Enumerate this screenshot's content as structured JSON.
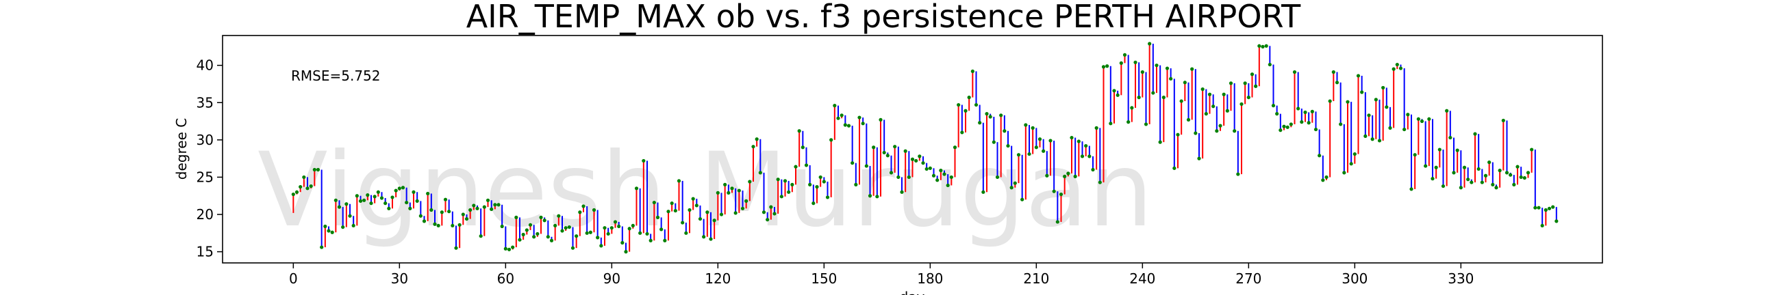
{
  "chart_data": {
    "type": "line",
    "title": "AIR_TEMP_MAX  ob vs. f3  persistence  PERTH AIRPORT",
    "xlabel": "day",
    "ylabel": "degree C",
    "xlim": [
      -20,
      370
    ],
    "ylim": [
      13.5,
      44
    ],
    "xticks": [
      0,
      30,
      60,
      90,
      120,
      150,
      180,
      210,
      240,
      270,
      300,
      330
    ],
    "yticks": [
      15,
      20,
      25,
      30,
      35,
      40
    ],
    "annotation": "RMSE=5.752",
    "watermark": "Vignesh Murugan",
    "grid": false,
    "colors": {
      "forecast_higher": "#ff0000",
      "forecast_lower": "#0000ff",
      "observed_marker": "#008000",
      "axis": "#000000"
    },
    "series": [
      {
        "role": "observed",
        "values": [
          22.7,
          23.0,
          23.7,
          25.0,
          23.5,
          23.8,
          26.0,
          26.0,
          15.6,
          18.4,
          17.8,
          17.6,
          21.9,
          21.0,
          18.3,
          21.4,
          19.8,
          18.5,
          22.5,
          21.8,
          21.9,
          22.6,
          21.5,
          22.4,
          23.0,
          22.2,
          21.5,
          20.8,
          22.3,
          23.2,
          23.5,
          23.6,
          21.6,
          20.8,
          23.0,
          21.8,
          19.8,
          19.1,
          22.8,
          20.6,
          18.7,
          18.5,
          20.3,
          22.0,
          20.4,
          18.5,
          15.5,
          18.6,
          20.0,
          19.4,
          20.6,
          21.2,
          20.8,
          17.1,
          21.0,
          21.9,
          20.7,
          21.3,
          21.3,
          18.4,
          15.4,
          15.3,
          15.6,
          19.6,
          16.6,
          17.3,
          17.9,
          18.6,
          17.0,
          17.4,
          19.6,
          19.2,
          17.0,
          16.5,
          18.5,
          19.8,
          17.8,
          18.2,
          18.3,
          15.5,
          17.1,
          20.3,
          21.1,
          17.5,
          17.6,
          20.6,
          16.9,
          15.8,
          18.2,
          17.4,
          18.2,
          19.0,
          18.4,
          16.2,
          15.0,
          18.1,
          18.5,
          23.5,
          17.5,
          27.2,
          17.4,
          16.5,
          21.6,
          19.6,
          18.0,
          16.5,
          20.4,
          21.5,
          20.5,
          24.5,
          18.9,
          17.5,
          20.6,
          22.1,
          21.2,
          19.4,
          17.0,
          20.3,
          16.7,
          19.2,
          22.9,
          20.0,
          24.0,
          22.9,
          23.5,
          20.2,
          23.2,
          20.8,
          21.8,
          24.4,
          29.1,
          30.1,
          25.6,
          20.3,
          19.3,
          21.0,
          20.1,
          24.7,
          22.4,
          24.5,
          23.0,
          24.0,
          26.4,
          31.2,
          29.0,
          26.6,
          24.0,
          21.5,
          23.7,
          25.0,
          24.4,
          22.3,
          30.0,
          34.6,
          32.9,
          33.3,
          32.0,
          31.9,
          26.9,
          24.0,
          33.0,
          32.2,
          26.5,
          22.5,
          29.0,
          22.4,
          32.7,
          28.3,
          27.9,
          25.6,
          29.1,
          25.0,
          23.0,
          28.5,
          25.0,
          27.4,
          27.2,
          27.8,
          26.9,
          26.1,
          26.2,
          25.2,
          24.6,
          25.9,
          25.4,
          23.9,
          25.0,
          29.0,
          34.7,
          31.0,
          33.9,
          35.7,
          39.2,
          34.7,
          32.3,
          23.0,
          33.5,
          33.1,
          29.7,
          25.0,
          33.3,
          31.2,
          29.2,
          23.6,
          24.2,
          28.0,
          22.0,
          32.0,
          28.1,
          31.6,
          29.0,
          30.1,
          28.5,
          25.2,
          29.9,
          23.1,
          19.0,
          22.7,
          25.1,
          25.5,
          30.3,
          25.1,
          29.8,
          27.8,
          29.2,
          27.8,
          26.0,
          31.6,
          24.3,
          39.8,
          39.9,
          32.2,
          36.6,
          36.0,
          40.3,
          41.4,
          32.4,
          34.3,
          40.4,
          35.7,
          39.1,
          32.1,
          42.9,
          36.3,
          40.0,
          29.7,
          35.7,
          39.6,
          38.2,
          26.2,
          30.7,
          35.2,
          37.7,
          32.7,
          39.5,
          30.9,
          27.5,
          36.8,
          33.5,
          36.1,
          34.5,
          31.2,
          31.9,
          36.1,
          33.9,
          37.6,
          31.2,
          25.4,
          34.8,
          37.6,
          35.7,
          38.8,
          37.2,
          42.6,
          42.5,
          42.6,
          40.1,
          34.6,
          33.5,
          31.3,
          31.8,
          31.7,
          32.1,
          39.1,
          34.2,
          32.4,
          33.7,
          32.3,
          33.8,
          31.4,
          27.9,
          24.6,
          25.0,
          35.2,
          39.1,
          37.7,
          32.1,
          25.6,
          35.1,
          26.8,
          28.1,
          38.6,
          36.4,
          30.5,
          33.3,
          30.1,
          35.4,
          29.9,
          37.0,
          34.4,
          31.6,
          39.5,
          40.1,
          39.6,
          31.4,
          33.4,
          23.4,
          28.0,
          32.8,
          32.5,
          26.5,
          32.8,
          24.8,
          26.3,
          28.7,
          23.8,
          33.9,
          30.3,
          25.6,
          28.6,
          23.6,
          26.3,
          24.7,
          24.3,
          30.8,
          26.1,
          24.3,
          25.2,
          27.0,
          24.0,
          23.6,
          25.9,
          32.6,
          25.6,
          25.3,
          24.0,
          26.4,
          25.0,
          24.9,
          25.6,
          28.7,
          20.9,
          20.9,
          18.5,
          20.6,
          20.8,
          21.0,
          19.1
        ]
      },
      {
        "role": "forecast_f3_persistence",
        "values": [
          20.2,
          22.7,
          23.0,
          23.7,
          25.0,
          23.5,
          23.8,
          26.0,
          26.0,
          15.6,
          18.4,
          17.8,
          17.6,
          21.9,
          21.0,
          18.3,
          21.4,
          19.8,
          18.5,
          22.5,
          21.8,
          21.9,
          22.6,
          21.5,
          22.4,
          23.0,
          22.2,
          21.5,
          20.8,
          22.3,
          23.2,
          23.5,
          23.6,
          21.6,
          20.8,
          23.0,
          21.8,
          19.8,
          19.1,
          22.8,
          20.6,
          18.7,
          18.5,
          20.3,
          22.0,
          20.4,
          18.5,
          15.5,
          18.6,
          20.0,
          19.4,
          20.6,
          21.2,
          20.8,
          17.1,
          21.0,
          21.9,
          20.7,
          21.3,
          21.3,
          18.4,
          15.4,
          15.3,
          15.6,
          19.6,
          16.6,
          17.3,
          17.9,
          18.6,
          17.0,
          17.4,
          19.6,
          19.2,
          17.0,
          16.5,
          18.5,
          19.8,
          17.8,
          18.2,
          18.3,
          15.5,
          17.1,
          20.3,
          21.1,
          17.5,
          17.6,
          20.6,
          16.9,
          15.8,
          18.2,
          17.4,
          18.2,
          19.0,
          18.4,
          16.2,
          15.0,
          18.1,
          18.5,
          23.5,
          17.5,
          27.2,
          17.4,
          16.5,
          21.6,
          19.6,
          18.0,
          16.5,
          20.4,
          21.5,
          20.5,
          24.5,
          18.9,
          17.5,
          20.6,
          22.1,
          21.2,
          19.4,
          17.0,
          20.3,
          16.7,
          19.2,
          22.9,
          20.0,
          24.0,
          22.9,
          23.5,
          20.2,
          23.2,
          20.8,
          21.8,
          24.4,
          29.1,
          30.1,
          25.6,
          20.3,
          19.3,
          21.0,
          20.1,
          24.7,
          22.4,
          24.5,
          23.0,
          24.0,
          26.4,
          31.2,
          29.0,
          26.6,
          24.0,
          21.5,
          23.7,
          25.0,
          24.4,
          22.3,
          30.0,
          34.6,
          32.9,
          33.3,
          32.0,
          31.9,
          26.9,
          24.0,
          33.0,
          32.2,
          26.5,
          22.5,
          29.0,
          22.4,
          32.7,
          28.3,
          27.9,
          25.6,
          29.1,
          25.0,
          23.0,
          28.5,
          25.0,
          27.4,
          27.2,
          27.8,
          26.9,
          26.1,
          26.2,
          25.2,
          24.6,
          25.9,
          25.4,
          23.9,
          25.0,
          29.0,
          34.7,
          31.0,
          33.9,
          35.7,
          39.2,
          34.7,
          32.3,
          23.0,
          33.5,
          33.1,
          29.7,
          25.0,
          33.3,
          31.2,
          29.2,
          23.6,
          24.2,
          28.0,
          22.0,
          32.0,
          28.1,
          31.6,
          29.0,
          30.1,
          28.5,
          25.2,
          29.9,
          23.1,
          19.0,
          22.7,
          25.1,
          25.5,
          30.3,
          25.1,
          29.8,
          27.8,
          29.2,
          27.8,
          26.0,
          31.6,
          24.3,
          39.8,
          39.9,
          32.2,
          36.6,
          36.0,
          40.3,
          41.4,
          32.4,
          34.3,
          40.4,
          35.7,
          39.1,
          32.1,
          42.9,
          36.3,
          40.0,
          29.7,
          35.7,
          39.6,
          38.2,
          26.2,
          30.7,
          35.2,
          37.7,
          32.7,
          39.5,
          30.9,
          27.5,
          36.8,
          33.5,
          36.1,
          34.5,
          31.2,
          31.9,
          36.1,
          33.9,
          37.6,
          31.2,
          25.4,
          34.8,
          37.6,
          35.7,
          38.8,
          37.2,
          42.6,
          42.5,
          42.6,
          40.1,
          34.6,
          33.5,
          31.3,
          31.8,
          31.7,
          32.1,
          39.1,
          34.2,
          32.4,
          33.7,
          32.3,
          33.8,
          31.4,
          27.9,
          24.6,
          25.0,
          35.2,
          39.1,
          37.7,
          32.1,
          25.6,
          35.1,
          26.8,
          28.1,
          38.6,
          36.4,
          30.5,
          33.3,
          30.1,
          35.4,
          29.9,
          37.0,
          34.4,
          31.6,
          39.5,
          40.1,
          39.6,
          31.4,
          33.4,
          23.4,
          28.0,
          32.8,
          32.5,
          26.5,
          32.8,
          24.8,
          26.3,
          28.7,
          23.8,
          33.9,
          30.3,
          25.6,
          28.6,
          23.6,
          26.3,
          24.7,
          24.3,
          30.8,
          26.1,
          24.3,
          25.2,
          27.0,
          24.0,
          23.6,
          25.9,
          32.6,
          25.6,
          25.3,
          24.0,
          26.4,
          25.0,
          24.9,
          25.6,
          28.7,
          20.9,
          20.9,
          18.5,
          20.6,
          20.8,
          21.0
        ]
      }
    ]
  }
}
